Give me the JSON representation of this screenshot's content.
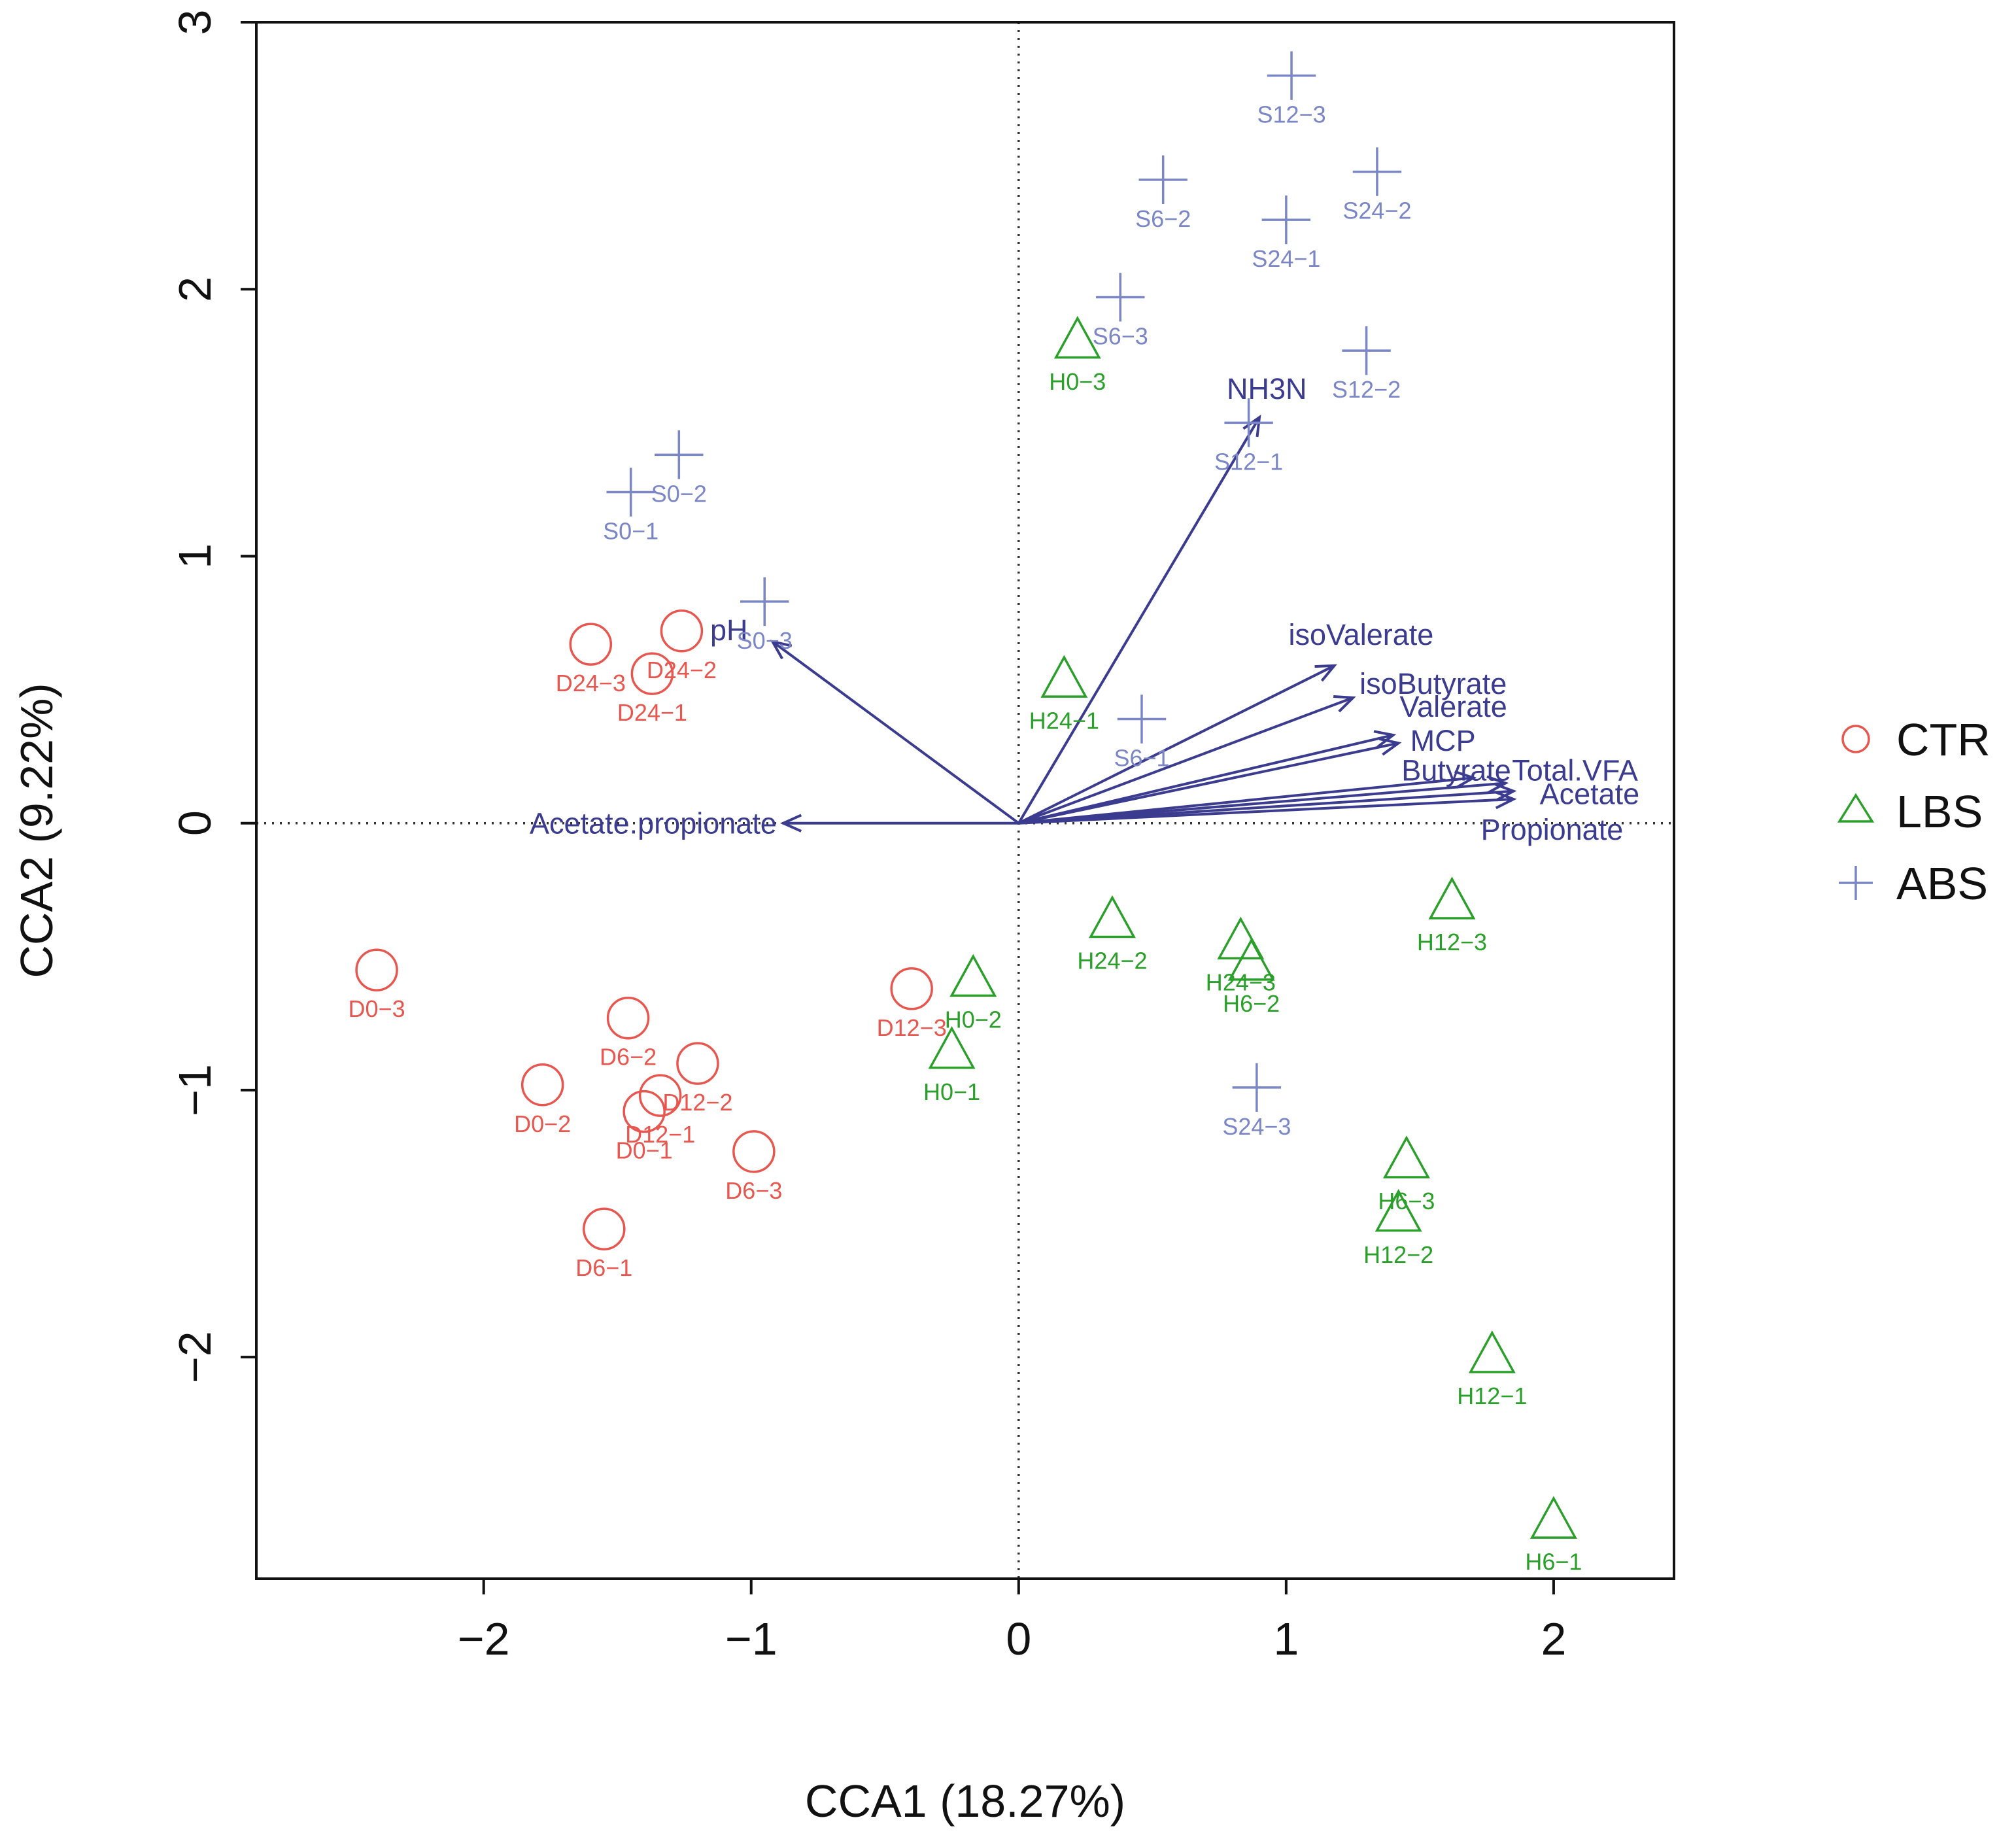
{
  "chart_data": {
    "type": "scatter",
    "title": "",
    "xlabel": "CCA1 (18.27%)",
    "ylabel": "CCA2 (9.22%)",
    "xlim": [
      -2.85,
      2.45
    ],
    "ylim": [
      -2.83,
      3.0
    ],
    "x_ticks": [
      -2,
      -1,
      0,
      1,
      2
    ],
    "x_tick_labels": [
      "−2",
      "−1",
      "0",
      "1",
      "2"
    ],
    "y_ticks": [
      -2,
      -1,
      0,
      1,
      2,
      3
    ],
    "y_tick_labels": [
      "−2",
      "−1",
      "0",
      "1",
      "2",
      "3"
    ],
    "legend": {
      "position": "right",
      "entries": [
        {
          "name": "CTR",
          "marker": "circle",
          "color": "#e8574f"
        },
        {
          "name": "LBS",
          "marker": "triangle",
          "color": "#2aa02a"
        },
        {
          "name": "ABS",
          "marker": "plus",
          "color": "#7b86c6"
        }
      ]
    },
    "reference_lines": {
      "x": 0,
      "y": 0,
      "style": "dotted"
    },
    "vector_color": "#3b3b8f",
    "series": [
      {
        "name": "CTR",
        "marker": "circle",
        "color": "#e8574f",
        "points": [
          {
            "label": "D24−3",
            "x": -1.6,
            "y": 0.67
          },
          {
            "label": "D24−2",
            "x": -1.26,
            "y": 0.72
          },
          {
            "label": "D24−1",
            "x": -1.37,
            "y": 0.56
          },
          {
            "label": "D0−3",
            "x": -2.4,
            "y": -0.55
          },
          {
            "label": "D6−2",
            "x": -1.46,
            "y": -0.73
          },
          {
            "label": "D12−3",
            "x": -0.4,
            "y": -0.62
          },
          {
            "label": "D0−2",
            "x": -1.78,
            "y": -0.98
          },
          {
            "label": "D12−2",
            "x": -1.2,
            "y": -0.9
          },
          {
            "label": "D12−1",
            "x": -1.34,
            "y": -1.02
          },
          {
            "label": "D0−1",
            "x": -1.4,
            "y": -1.08
          },
          {
            "label": "D6−3",
            "x": -0.99,
            "y": -1.23
          },
          {
            "label": "D6−1",
            "x": -1.55,
            "y": -1.52
          }
        ]
      },
      {
        "name": "LBS",
        "marker": "triangle",
        "color": "#2aa02a",
        "points": [
          {
            "label": "H0−3",
            "x": 0.22,
            "y": 1.8
          },
          {
            "label": "H24−1",
            "x": 0.17,
            "y": 0.53
          },
          {
            "label": "H24−2",
            "x": 0.35,
            "y": -0.37
          },
          {
            "label": "H0−2",
            "x": -0.17,
            "y": -0.59
          },
          {
            "label": "H0−1",
            "x": -0.25,
            "y": -0.86
          },
          {
            "label": "H24−3",
            "x": 0.83,
            "y": -0.45
          },
          {
            "label": "H6−2",
            "x": 0.87,
            "y": -0.53
          },
          {
            "label": "H12−3",
            "x": 1.62,
            "y": -0.3
          },
          {
            "label": "H6−3",
            "x": 1.45,
            "y": -1.27
          },
          {
            "label": "H12−2",
            "x": 1.42,
            "y": -1.47
          },
          {
            "label": "H12−1",
            "x": 1.77,
            "y": -2.0
          },
          {
            "label": "H6−1",
            "x": 2.0,
            "y": -2.62
          }
        ]
      },
      {
        "name": "ABS",
        "marker": "plus",
        "color": "#7b86c6",
        "points": [
          {
            "label": "S12−3",
            "x": 1.02,
            "y": 2.8
          },
          {
            "label": "S6−2",
            "x": 0.54,
            "y": 2.41
          },
          {
            "label": "S24−2",
            "x": 1.34,
            "y": 2.44
          },
          {
            "label": "S24−1",
            "x": 1.0,
            "y": 2.26
          },
          {
            "label": "S6−3",
            "x": 0.38,
            "y": 1.97
          },
          {
            "label": "S12−2",
            "x": 1.3,
            "y": 1.77
          },
          {
            "label": "S12−1",
            "x": 0.86,
            "y": 1.5
          },
          {
            "label": "S0−2",
            "x": -1.27,
            "y": 1.38
          },
          {
            "label": "S0−1",
            "x": -1.45,
            "y": 1.24
          },
          {
            "label": "S0−3",
            "x": -0.95,
            "y": 0.83
          },
          {
            "label": "S6−1",
            "x": 0.46,
            "y": 0.39
          },
          {
            "label": "S24−3",
            "x": 0.89,
            "y": -0.99
          }
        ]
      }
    ],
    "vectors": [
      {
        "name": "NH3N",
        "x": 0.9,
        "y": 1.52
      },
      {
        "name": "pH",
        "x": -0.92,
        "y": 0.68
      },
      {
        "name": "Acetate.propionate",
        "x": -0.88,
        "y": 0.0
      },
      {
        "name": "isoValerate",
        "x": 1.18,
        "y": 0.59
      },
      {
        "name": "isoButyrate",
        "x": 1.25,
        "y": 0.47
      },
      {
        "name": "Valerate",
        "x": 1.4,
        "y": 0.33
      },
      {
        "name": "MCP",
        "x": 1.42,
        "y": 0.3
      },
      {
        "name": "Butyrate",
        "x": 1.7,
        "y": 0.17
      },
      {
        "name": "Total.VFA",
        "x": 1.82,
        "y": 0.15
      },
      {
        "name": "Acetate",
        "x": 1.85,
        "y": 0.12
      },
      {
        "name": "Propionate",
        "x": 1.85,
        "y": 0.09
      }
    ]
  }
}
